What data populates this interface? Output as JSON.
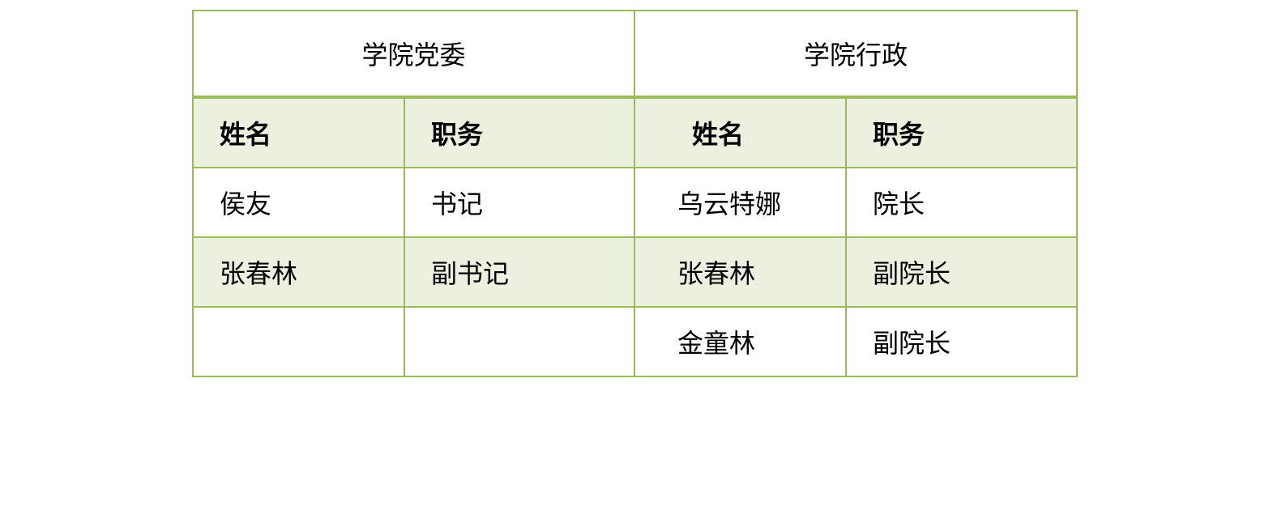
{
  "groups": [
    "学院党委",
    "学院行政"
  ],
  "headers": [
    "姓名",
    "职务",
    "姓名",
    "职务"
  ],
  "rows": [
    [
      "侯友",
      "书记",
      "乌云特娜",
      "院长"
    ],
    [
      "张春林",
      "副书记",
      "张春林",
      "副院长"
    ],
    [
      "",
      "",
      "金童林",
      "副院长"
    ]
  ],
  "colors": {
    "border": "#9bbb59",
    "band": "#ebf1de"
  }
}
